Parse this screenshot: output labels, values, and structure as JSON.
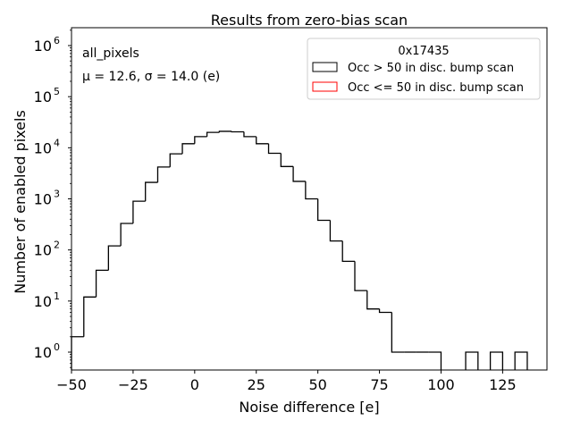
{
  "chart_data": {
    "type": "histogram",
    "title": "Results from zero-bias scan",
    "xlabel": "Noise difference [e]",
    "ylabel": "Number of enabled pixels",
    "yscale": "log",
    "xlim": [
      -50,
      143
    ],
    "ylim_log10": [
      -0.35,
      6.35
    ],
    "x_ticks": [
      -50,
      -25,
      0,
      25,
      50,
      75,
      100,
      125
    ],
    "x_tick_labels": [
      "−50",
      "−25",
      "0",
      "25",
      "50",
      "75",
      "100",
      "125"
    ],
    "y_ticks": [
      0,
      1,
      2,
      3,
      4,
      5,
      6
    ],
    "annotation_top": "all_pixels",
    "annotation_stats": "μ = 12.6, σ = 14.0 (e)",
    "legend": {
      "title": "0x17435",
      "position": "top-right",
      "entries": [
        {
          "label": "Occ > 50 in disc. bump scan",
          "color": "#000000"
        },
        {
          "label": "Occ <= 50 in disc. bump scan",
          "color": "#ff0000"
        }
      ]
    },
    "series": [
      {
        "name": "Occ > 50 in disc. bump scan",
        "color": "#000000",
        "bin_edges": [
          -50,
          -45,
          -40,
          -35,
          -30,
          -25,
          -20,
          -15,
          -10,
          -5,
          0,
          5,
          10,
          15,
          20,
          25,
          30,
          35,
          40,
          45,
          50,
          55,
          60,
          65,
          70,
          75,
          80,
          85,
          90,
          95,
          100,
          105,
          110,
          115,
          120,
          125,
          130,
          135
        ],
        "counts": [
          2,
          12,
          40,
          120,
          330,
          900,
          2100,
          4200,
          7600,
          12000,
          16500,
          20000,
          21000,
          20500,
          16500,
          12000,
          7800,
          4300,
          2200,
          1000,
          380,
          150,
          60,
          16,
          7,
          6,
          1,
          1,
          1,
          1,
          0,
          0,
          1,
          0,
          1,
          0,
          1
        ]
      },
      {
        "name": "Occ <= 50 in disc. bump scan",
        "color": "#ff0000",
        "bin_edges": [],
        "counts": []
      }
    ]
  }
}
